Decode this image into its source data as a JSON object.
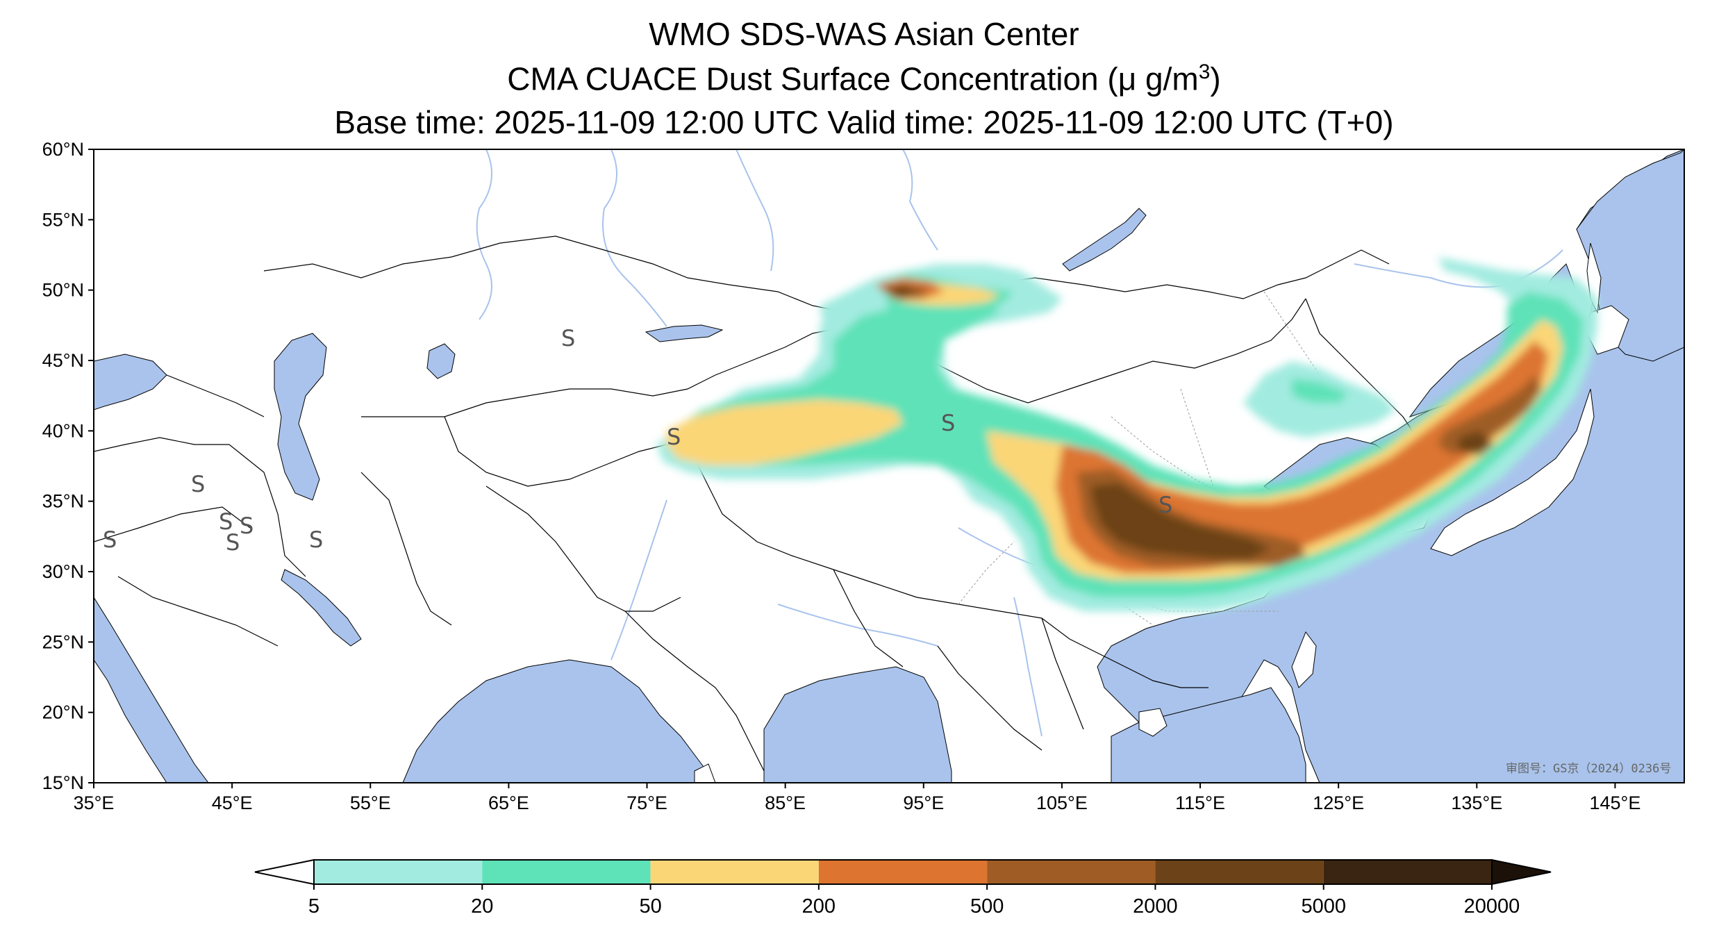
{
  "titles": {
    "line1": "WMO SDS-WAS Asian Center",
    "line2_prefix": "CMA CUACE Dust Surface Concentration (",
    "line2_unit_mu": "μ",
    "line2_unit": " g/m",
    "line2_sup": "3",
    "line2_suffix": ")",
    "line3": "Base time: 2025-11-09 12:00 UTC Valid time: 2025-11-09 12:00 UTC (T+0)"
  },
  "map": {
    "extent_lon": [
      35,
      150
    ],
    "extent_lat": [
      15,
      60
    ],
    "lat_ticks": [
      {
        "value": 60,
        "label": "60°N"
      },
      {
        "value": 55,
        "label": "55°N"
      },
      {
        "value": 50,
        "label": "50°N"
      },
      {
        "value": 45,
        "label": "45°N"
      },
      {
        "value": 40,
        "label": "40°N"
      },
      {
        "value": 35,
        "label": "35°N"
      },
      {
        "value": 30,
        "label": "30°N"
      },
      {
        "value": 25,
        "label": "25°N"
      },
      {
        "value": 20,
        "label": "20°N"
      },
      {
        "value": 15,
        "label": "15°N"
      }
    ],
    "lon_ticks": [
      {
        "value": 35,
        "label": "35°E"
      },
      {
        "value": 45,
        "label": "45°E"
      },
      {
        "value": 55,
        "label": "55°E"
      },
      {
        "value": 65,
        "label": "65°E"
      },
      {
        "value": 75,
        "label": "75°E"
      },
      {
        "value": 85,
        "label": "85°E"
      },
      {
        "value": 95,
        "label": "95°E"
      },
      {
        "value": 105,
        "label": "105°E"
      },
      {
        "value": 115,
        "label": "115°E"
      },
      {
        "value": 125,
        "label": "125°E"
      },
      {
        "value": 135,
        "label": "135°E"
      },
      {
        "value": 145,
        "label": "145°E"
      }
    ],
    "sea_color": "#a9c3ec",
    "land_color": "#ffffff",
    "watermark": "审图号：GS京（2024）0236号",
    "station_symbol": "S"
  },
  "colorbar": {
    "levels": [
      "5",
      "20",
      "50",
      "200",
      "500",
      "2000",
      "5000",
      "20000"
    ],
    "colors": [
      "#a2ebe0",
      "#5ee2b8",
      "#fbd677",
      "#dd7430",
      "#9f5d25",
      "#6c4319",
      "#3a2412"
    ],
    "under_color": "#ffffff",
    "over_color": "#1c1108"
  }
}
